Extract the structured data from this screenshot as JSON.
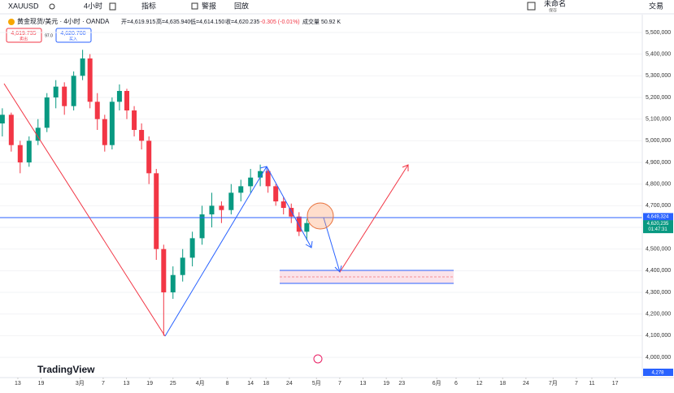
{
  "toolbar": {
    "symbol": "XAUUSD",
    "interval": "4小时",
    "indicators": "指标",
    "alerts": "警报",
    "replay": "回放",
    "layout_name": "未命名",
    "save": "保存",
    "trade": "交易"
  },
  "legend": {
    "title": "黄金现货/美元 · 4小时 · OANDA",
    "open": "开=4,619.915",
    "high": "高=4,635.940",
    "low": "低=4,614.150",
    "close": "收=4,620.235",
    "change": "-0.305 (-0.01%)",
    "volume": "成交量 50.92 K"
  },
  "trade_buttons": {
    "sell_price": "4,619.735",
    "sell": "卖出",
    "spread": "97.0",
    "buy_price": "4,620.700",
    "buy": "买入"
  },
  "price_tags": [
    {
      "value": 4649324,
      "label": "4,649,324"
    },
    {
      "value": 4620235,
      "label": "4,620,235"
    }
  ],
  "countdown": "01:47:31",
  "bottom_tag": "4,278",
  "logo": "TradingView",
  "chart_data": {
    "type": "candlestick",
    "up_color": "#089981",
    "down_color": "#f23645",
    "x": [
      40,
      42.3,
      44.6,
      46.9,
      49.2,
      51.5,
      53.8,
      56,
      58.4,
      60.7,
      62.6,
      64.5,
      66.4,
      68.3,
      70.2,
      72.1,
      74,
      75.9,
      77.8,
      79.7,
      81.6,
      84,
      86.5,
      89,
      91.5,
      94,
      96.5,
      99,
      101.5,
      104,
      106.5,
      108.5,
      110.5,
      112.5,
      114.5,
      116.5,
      118.5
    ],
    "open": [
      5080000,
      5120000,
      4980000,
      4900000,
      5000000,
      5060000,
      5200000,
      5250000,
      5160000,
      5300000,
      5380000,
      5180000,
      5100000,
      4980000,
      5180000,
      5230000,
      5140000,
      5050000,
      5000000,
      4850000,
      4500000,
      4300000,
      4380000,
      4460000,
      4550000,
      4660000,
      4700000,
      4680000,
      4760000,
      4790000,
      4830000,
      4860000,
      4790000,
      4720000,
      4690000,
      4650000,
      4580000
    ],
    "high": [
      5150000,
      5130000,
      5000000,
      5020000,
      5100000,
      5220000,
      5280000,
      5270000,
      5320000,
      5420000,
      5400000,
      5220000,
      5120000,
      5200000,
      5260000,
      5240000,
      5160000,
      5080000,
      5020000,
      4870000,
      4520000,
      4420000,
      4500000,
      4580000,
      4700000,
      4760000,
      4720000,
      4800000,
      4820000,
      4870000,
      4890000,
      4870000,
      4800000,
      4740000,
      4710000,
      4670000,
      4640000
    ],
    "low": [
      5020000,
      4950000,
      4850000,
      4880000,
      4980000,
      5040000,
      5150000,
      5120000,
      5140000,
      5280000,
      5150000,
      5050000,
      4950000,
      4960000,
      5140000,
      5100000,
      5020000,
      4960000,
      4800000,
      4450000,
      4100000,
      4270000,
      4350000,
      4420000,
      4520000,
      4600000,
      4620000,
      4660000,
      4720000,
      4760000,
      4790000,
      4760000,
      4700000,
      4660000,
      4620000,
      4560000,
      4540000
    ],
    "close": [
      5120000,
      4980000,
      4900000,
      5000000,
      5060000,
      5200000,
      5250000,
      5160000,
      5300000,
      5380000,
      5180000,
      5100000,
      4980000,
      5180000,
      5230000,
      5140000,
      5050000,
      5000000,
      4850000,
      4500000,
      4300000,
      4380000,
      4460000,
      4550000,
      4660000,
      4700000,
      4680000,
      4760000,
      4790000,
      4830000,
      4860000,
      4790000,
      4720000,
      4690000,
      4650000,
      4580000,
      4620000
    ],
    "ylim": [
      3944000,
      5537500
    ],
    "yticks": [
      {
        "value": 5500000,
        "label": "5,500,000"
      },
      {
        "value": 5400000,
        "label": "5,400,000"
      },
      {
        "value": 5300000,
        "label": "5,300,000"
      },
      {
        "value": 5200000,
        "label": "5,200,000"
      },
      {
        "value": 5100000,
        "label": "5,100,000"
      },
      {
        "value": 5000000,
        "label": "5,000,000"
      },
      {
        "value": 4900000,
        "label": "4,900,000"
      },
      {
        "value": 4800000,
        "label": "4,800,000"
      },
      {
        "value": 4700000,
        "label": "4,700,000"
      },
      {
        "value": 4600000,
        "label": "4,600,000"
      },
      {
        "value": 4500000,
        "label": "4,500,000"
      },
      {
        "value": 4400000,
        "label": "4,400,000"
      },
      {
        "value": 4300000,
        "label": "4,300,000"
      },
      {
        "value": 4200000,
        "label": "4,200,000"
      },
      {
        "value": 4100000,
        "label": "4,100,000"
      },
      {
        "value": 4000000,
        "label": "4,000,000"
      }
    ],
    "xlim": [
      39.4,
      205
    ],
    "xticks": [
      {
        "value": 44,
        "label": "13"
      },
      {
        "value": 50,
        "label": "19"
      },
      {
        "value": 60,
        "label": "3月"
      },
      {
        "value": 66,
        "label": "7"
      },
      {
        "value": 72,
        "label": "13"
      },
      {
        "value": 78,
        "label": "19"
      },
      {
        "value": 84,
        "label": "25"
      },
      {
        "value": 91,
        "label": "4月"
      },
      {
        "value": 98,
        "label": "8"
      },
      {
        "value": 104,
        "label": "14"
      },
      {
        "value": 108,
        "label": "18"
      },
      {
        "value": 114,
        "label": "24"
      },
      {
        "value": 121,
        "label": "5月"
      },
      {
        "value": 127,
        "label": "7"
      },
      {
        "value": 133,
        "label": "13"
      },
      {
        "value": 139,
        "label": "19"
      },
      {
        "value": 143,
        "label": "23"
      },
      {
        "value": 152,
        "label": "6月"
      },
      {
        "value": 157,
        "label": "6"
      },
      {
        "value": 163,
        "label": "12"
      },
      {
        "value": 169,
        "label": "18"
      },
      {
        "value": 175,
        "label": "24"
      },
      {
        "value": 182,
        "label": "7月"
      },
      {
        "value": 188,
        "label": "7"
      },
      {
        "value": 192,
        "label": "11"
      },
      {
        "value": 198,
        "label": "17"
      }
    ]
  }
}
